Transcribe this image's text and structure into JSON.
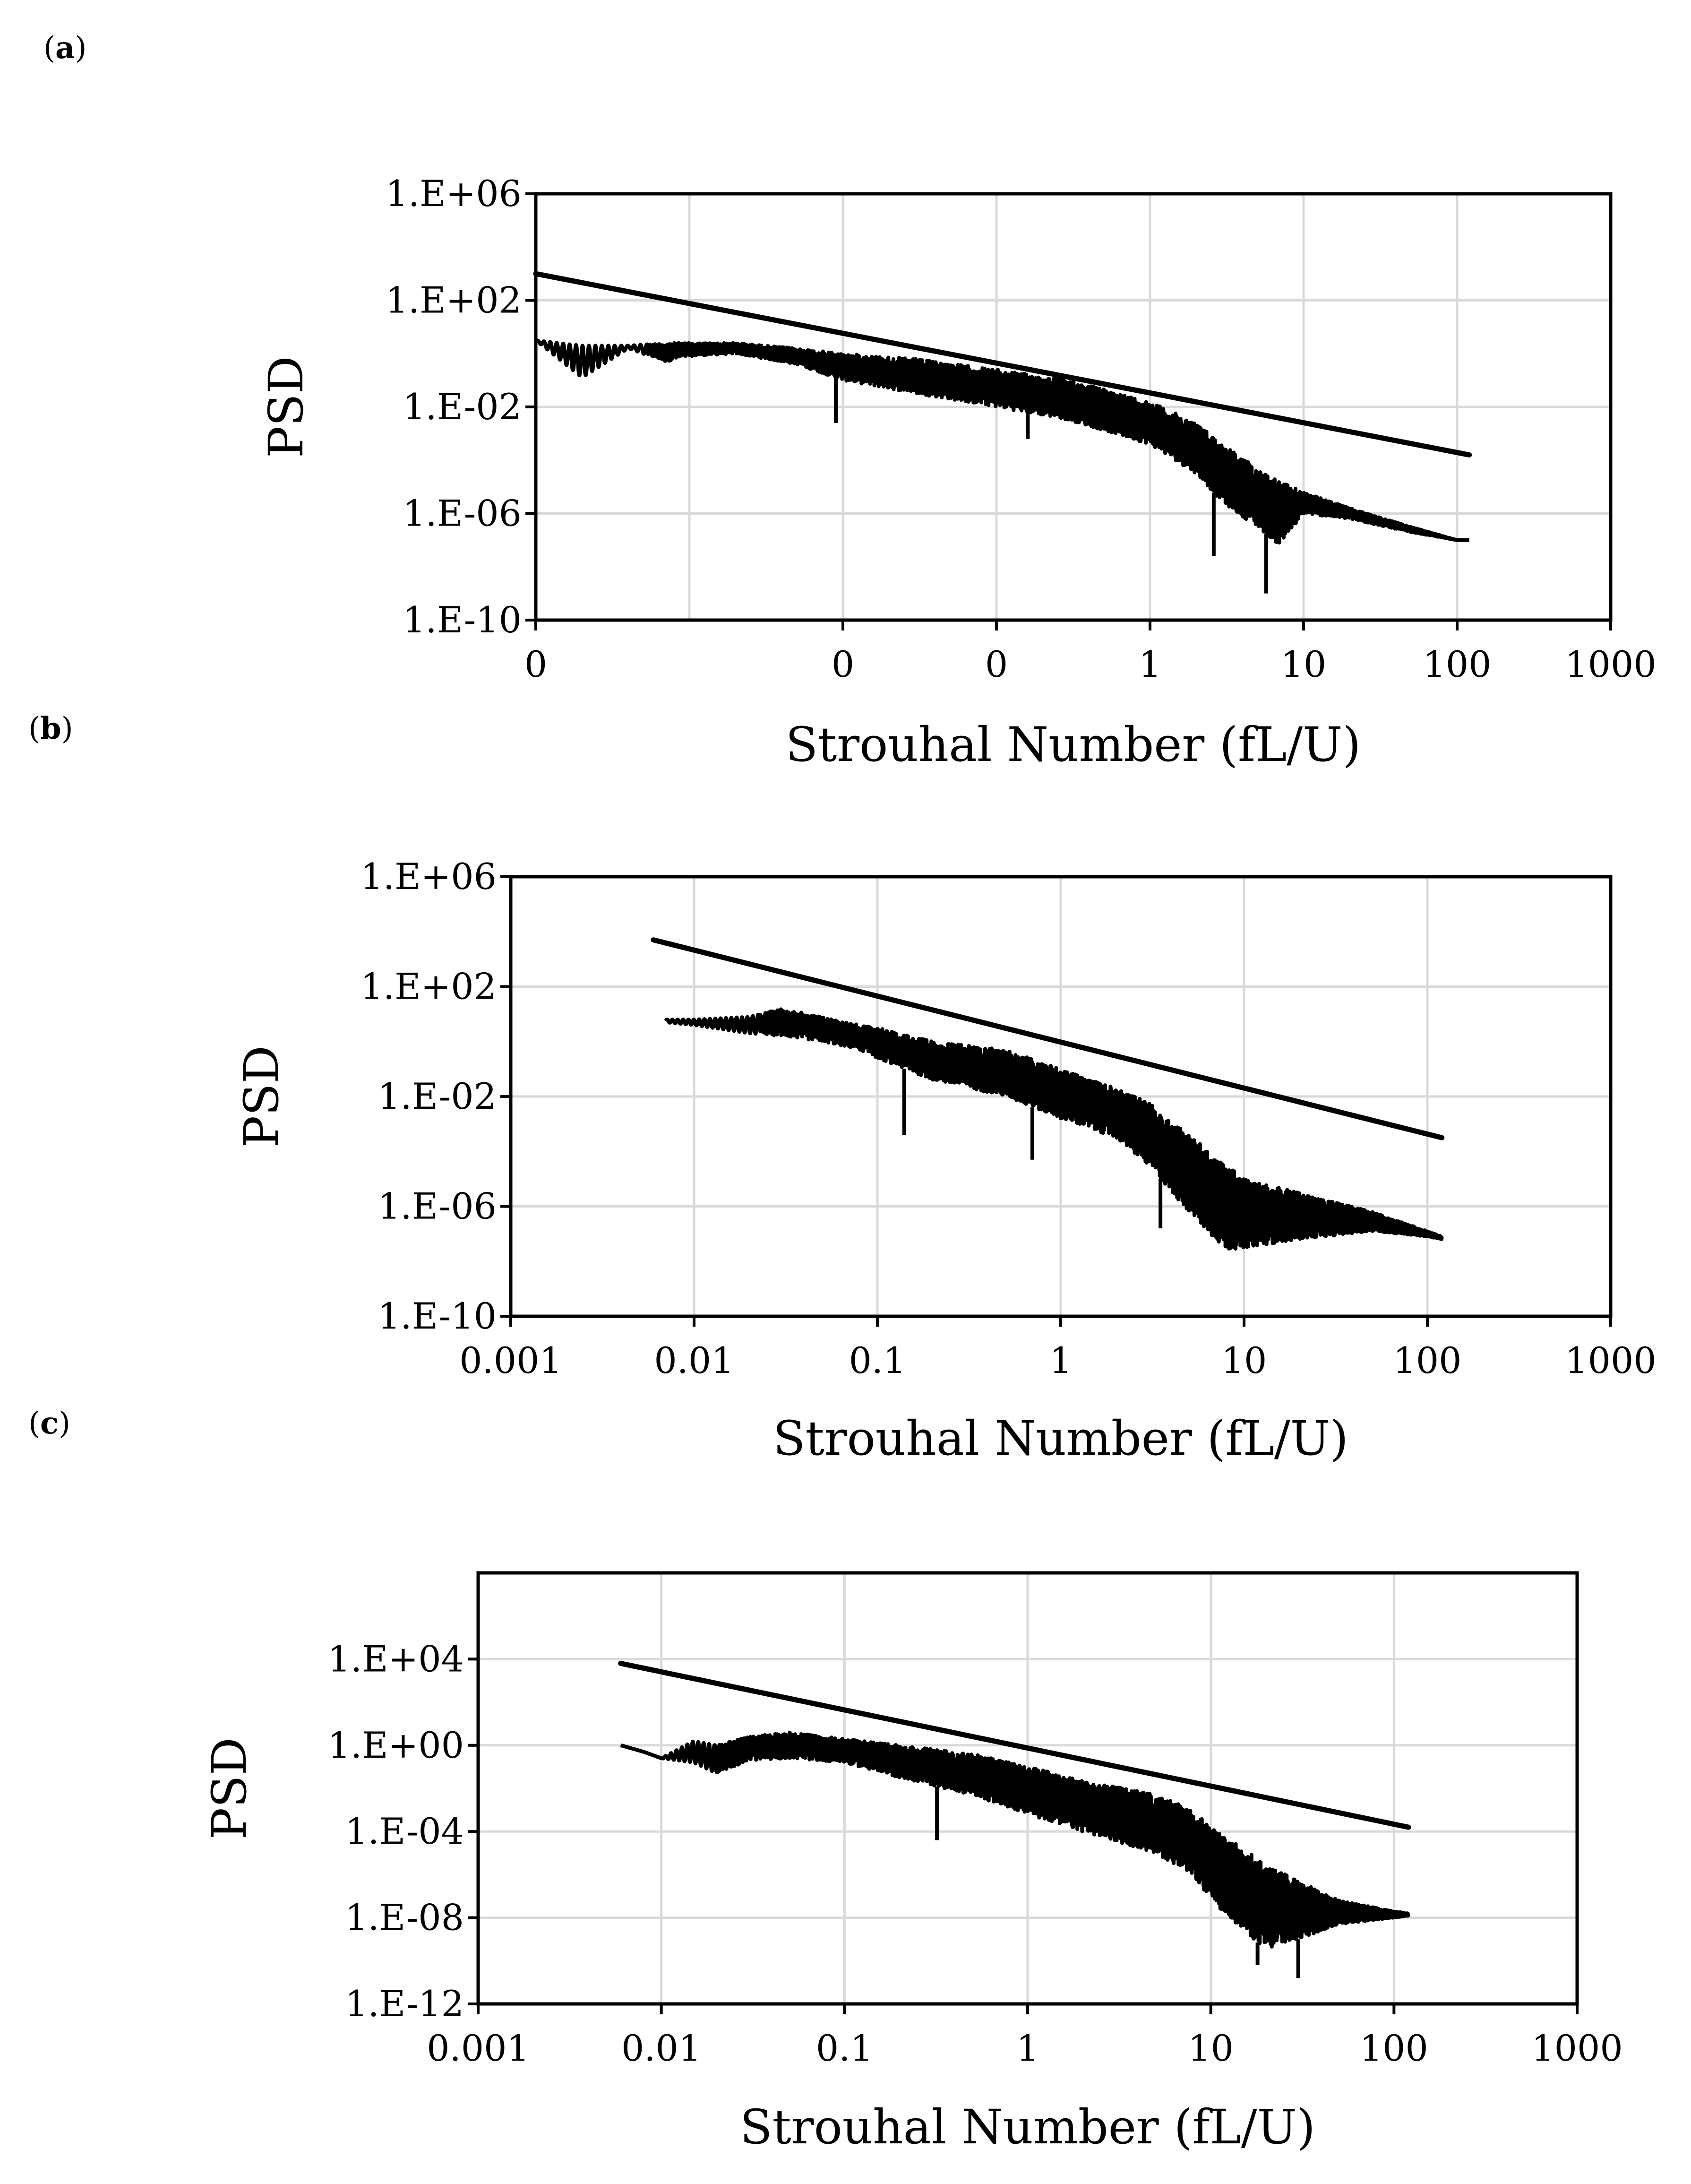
{
  "panels": [
    {
      "label": "a"
    },
    {
      "label": "b"
    },
    {
      "label": "c"
    }
  ],
  "chart_data": [
    {
      "id": "a",
      "type": "line",
      "xscale": "log",
      "yscale": "log",
      "xlim": [
        0.0001,
        1000
      ],
      "ylim_exponent": [
        -10,
        6
      ],
      "xticks": [
        0.0001,
        0.001,
        0.01,
        0.1,
        1,
        10,
        100,
        1000
      ],
      "xtick_labels": [
        "0",
        "0",
        "0",
        "1",
        "10",
        "100",
        "1000"
      ],
      "xtick_positions": [
        0.0001,
        0.01,
        0.1,
        1,
        10,
        100,
        1000
      ],
      "ytick_exponents": [
        6,
        2,
        -2,
        -6,
        -10
      ],
      "ytick_labels": [
        "1.E+06",
        "1.E+02",
        "1.E-02",
        "1.E-06",
        "1.E-10"
      ],
      "xlabel": "Strouhal Number (fL/U)",
      "ylabel": "PSD",
      "reference_line": {
        "x": [
          0.0001,
          120
        ],
        "log10_y": [
          3.0,
          -3.8
        ]
      },
      "psd_envelope": {
        "x": [
          0.0001,
          0.0002,
          0.0004,
          0.0007,
          0.001,
          0.002,
          0.005,
          0.01,
          0.03,
          0.1,
          0.3,
          1,
          2,
          3,
          5,
          7,
          10,
          20,
          50,
          100,
          120
        ],
        "log10_y_upper": [
          0.5,
          0.3,
          0.3,
          0.4,
          0.4,
          0.4,
          0.2,
          0.0,
          -0.2,
          -0.6,
          -1.0,
          -1.8,
          -2.6,
          -3.4,
          -4.3,
          -4.8,
          -5.2,
          -5.8,
          -6.5,
          -7.0,
          -7.0
        ],
        "log10_y_lower": [
          0.5,
          -0.9,
          0.2,
          -0.3,
          -0.1,
          0.0,
          -0.4,
          -1.0,
          -1.5,
          -2.0,
          -2.5,
          -3.4,
          -4.5,
          -5.6,
          -6.5,
          -7.2,
          -6.0,
          -6.2,
          -6.7,
          -7.0,
          -7.0
        ],
        "deep_dips": [
          {
            "x": 0.009,
            "log10_y": -2.6
          },
          {
            "x": 0.16,
            "log10_y": -3.2
          },
          {
            "x": 2.6,
            "log10_y": -7.6
          },
          {
            "x": 5.7,
            "log10_y": -9.0
          }
        ]
      }
    },
    {
      "id": "b",
      "type": "line",
      "xscale": "log",
      "yscale": "log",
      "xlim": [
        0.001,
        1000
      ],
      "ylim_exponent": [
        -10,
        6
      ],
      "xticks": [
        0.001,
        0.01,
        0.1,
        1,
        10,
        100,
        1000
      ],
      "xtick_labels": [
        "0.001",
        "0.01",
        "0.1",
        "1",
        "10",
        "100",
        "1000"
      ],
      "ytick_exponents": [
        6,
        2,
        -2,
        -6,
        -10
      ],
      "ytick_labels": [
        "1.E+06",
        "1.E+02",
        "1.E-02",
        "1.E-06",
        "1.E-10"
      ],
      "xlabel": "Strouhal Number (fL/U)",
      "ylabel": "PSD",
      "reference_line": {
        "x": [
          0.006,
          120
        ],
        "log10_y": [
          3.7,
          -3.5
        ]
      },
      "psd_envelope": {
        "x": [
          0.007,
          0.01,
          0.02,
          0.03,
          0.05,
          0.08,
          0.1,
          0.2,
          0.5,
          1,
          2,
          3,
          5,
          8,
          10,
          20,
          50,
          100,
          120
        ],
        "log10_y_upper": [
          0.8,
          0.8,
          0.9,
          1.2,
          0.9,
          0.6,
          0.5,
          0.0,
          -0.3,
          -1.0,
          -1.7,
          -2.2,
          -3.4,
          -4.5,
          -5.0,
          -5.5,
          -6.2,
          -6.9,
          -7.1
        ],
        "log10_y_lower": [
          0.7,
          0.6,
          0.3,
          0.2,
          0.0,
          -0.3,
          -0.6,
          -1.4,
          -2.0,
          -2.8,
          -3.5,
          -4.5,
          -6.2,
          -7.6,
          -7.5,
          -7.2,
          -6.9,
          -7.1,
          -7.2
        ],
        "deep_dips": [
          {
            "x": 0.14,
            "log10_y": -3.4
          },
          {
            "x": 0.7,
            "log10_y": -4.3
          },
          {
            "x": 3.5,
            "log10_y": -6.8
          }
        ]
      }
    },
    {
      "id": "c",
      "type": "line",
      "xscale": "log",
      "yscale": "log",
      "xlim": [
        0.001,
        1000
      ],
      "ylim_exponent": [
        -12,
        8
      ],
      "xticks": [
        0.001,
        0.01,
        0.1,
        1,
        10,
        100,
        1000
      ],
      "xtick_labels": [
        "0.001",
        "0.01",
        "0.1",
        "1",
        "10",
        "100",
        "1000"
      ],
      "ytick_exponents": [
        4,
        0,
        -4,
        -8,
        -12
      ],
      "ytick_labels": [
        "1.E+04",
        "1.E+00",
        "1.E-04",
        "1.E-08",
        "1.E-12"
      ],
      "xlabel": "Strouhal Number (fL/U)",
      "ylabel": "PSD",
      "reference_line": {
        "x": [
          0.006,
          120
        ],
        "log10_y": [
          3.8,
          -3.8
        ]
      },
      "psd_envelope": {
        "x": [
          0.006,
          0.008,
          0.01,
          0.015,
          0.02,
          0.03,
          0.05,
          0.1,
          0.2,
          0.5,
          1,
          2,
          5,
          8,
          10,
          20,
          30,
          50,
          100,
          120
        ],
        "log10_y_upper": [
          0.0,
          -0.3,
          -0.6,
          0.2,
          0.0,
          0.4,
          0.6,
          0.3,
          0.0,
          -0.4,
          -1.0,
          -1.6,
          -2.3,
          -3.0,
          -3.8,
          -5.5,
          -6.3,
          -7.2,
          -7.7,
          -7.8
        ],
        "log10_y_lower": [
          0.0,
          -0.3,
          -0.6,
          -0.8,
          -1.3,
          -0.7,
          -0.6,
          -0.8,
          -1.5,
          -2.3,
          -3.2,
          -4.0,
          -5.0,
          -6.0,
          -7.2,
          -9.5,
          -9.0,
          -8.3,
          -8.0,
          -7.9
        ],
        "deep_dips": [
          {
            "x": 0.32,
            "log10_y": -4.4
          },
          {
            "x": 18,
            "log10_y": -10.2
          },
          {
            "x": 30,
            "log10_y": -10.8
          }
        ]
      }
    }
  ]
}
